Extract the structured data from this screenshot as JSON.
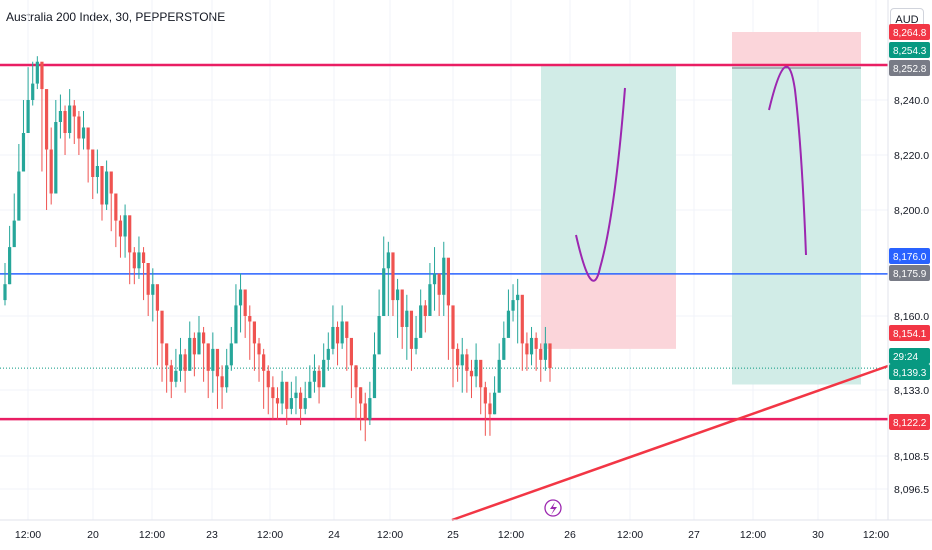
{
  "title": "Australia 200 Index, 30, PEPPERSTONE",
  "currency": "AUD",
  "colors": {
    "up": "#26a69a",
    "down": "#ef5350",
    "level_line": "#e91e63",
    "blue_line": "#2962ff",
    "trendline": "#f23645",
    "arc": "#9c27b0",
    "tp_zone": "#d1ece7",
    "sl_zone": "#fbd5da"
  },
  "chart_data": {
    "type": "candlestick",
    "y_ticks": [
      "8,240.0",
      "8,220.0",
      "8,200.0",
      "8,160.0",
      "8,133.0",
      "8,108.5",
      "8,096.5"
    ],
    "x_ticks": [
      "12:00",
      "20",
      "12:00",
      "23",
      "12:00",
      "24",
      "12:00",
      "25",
      "12:00",
      "26",
      "12:00",
      "27",
      "12:00",
      "30",
      "12:00"
    ],
    "price_labels": [
      {
        "id": "top_hidden",
        "text": "8,264.8",
        "color": "#f23645"
      },
      {
        "id": "upper_a",
        "text": "8,254.3",
        "color": "#089981"
      },
      {
        "id": "upper_b",
        "text": "8,252.8",
        "color": "#787b86"
      },
      {
        "id": "blue_a",
        "text": "8,176.0",
        "color": "#2962ff"
      },
      {
        "id": "blue_b",
        "text": "8,175.9",
        "color": "#787b86"
      },
      {
        "id": "last_red",
        "text": "8,154.1",
        "color": "#f23645"
      },
      {
        "id": "countdown",
        "text": "29:24",
        "color": "#089981"
      },
      {
        "id": "last_green",
        "text": "8,139.3",
        "color": "#089981"
      },
      {
        "id": "support",
        "text": "8,122.2",
        "color": "#f23645"
      }
    ],
    "horizontal_levels": [
      8252.8,
      8175.9,
      8122.2
    ],
    "last_price": 8141.0,
    "series": {
      "name": "",
      "closes": [
        8172,
        8186,
        8196,
        8214,
        8228,
        8240,
        8246,
        8254,
        8244,
        8222,
        8206,
        8232,
        8236,
        8228,
        8238,
        8234,
        8226,
        8230,
        8222,
        8212,
        8216,
        8202,
        8214,
        8206,
        8196,
        8190,
        8198,
        8184,
        8178,
        8184,
        8180,
        8168,
        8172,
        8162,
        8150,
        8142,
        8136,
        8140,
        8146,
        8140,
        8152,
        8146,
        8154,
        8150,
        8140,
        8148,
        8138,
        8134,
        8142,
        8150,
        8164,
        8170,
        8160,
        8158,
        8150,
        8146,
        8140,
        8134,
        8130,
        8128,
        8136,
        8126,
        8130,
        8132,
        8126,
        8130,
        8136,
        8140,
        8134,
        8144,
        8148,
        8156,
        8150,
        8158,
        8152,
        8142,
        8134,
        8128,
        8122,
        8130,
        8146,
        8160,
        8178,
        8184,
        8166,
        8170,
        8156,
        8162,
        8148,
        8152,
        8164,
        8160,
        8172,
        8176,
        8168,
        8182,
        8164,
        8148,
        8142,
        8146,
        8140,
        8138,
        8144,
        8134,
        8128,
        8124,
        8132,
        8144,
        8152,
        8162,
        8166,
        8168,
        8150,
        8146,
        8152,
        8148,
        8144,
        8150,
        8141
      ],
      "highs": [
        8180,
        8194,
        8206,
        8224,
        8240,
        8252,
        8254,
        8256,
        8250,
        8242,
        8230,
        8240,
        8242,
        8238,
        8244,
        8240,
        8236,
        8236,
        8230,
        8220,
        8222,
        8212,
        8218,
        8212,
        8204,
        8198,
        8202,
        8192,
        8186,
        8190,
        8186,
        8176,
        8178,
        8170,
        8158,
        8150,
        8144,
        8148,
        8152,
        8148,
        8158,
        8154,
        8160,
        8156,
        8150,
        8154,
        8146,
        8142,
        8148,
        8156,
        8172,
        8176,
        8166,
        8164,
        8156,
        8152,
        8148,
        8142,
        8138,
        8134,
        8140,
        8134,
        8136,
        8138,
        8134,
        8136,
        8142,
        8146,
        8142,
        8150,
        8154,
        8164,
        8158,
        8164,
        8158,
        8150,
        8142,
        8134,
        8132,
        8136,
        8154,
        8170,
        8190,
        8188,
        8176,
        8174,
        8166,
        8168,
        8156,
        8160,
        8170,
        8166,
        8180,
        8186,
        8176,
        8188,
        8172,
        8156,
        8150,
        8152,
        8148,
        8144,
        8150,
        8142,
        8136,
        8132,
        8138,
        8150,
        8158,
        8170,
        8172,
        8174,
        8158,
        8154,
        8156,
        8154,
        8150,
        8156,
        8148
      ],
      "lows": [
        8164,
        8172,
        8188,
        8206,
        8220,
        8230,
        8238,
        8244,
        8214,
        8200,
        8202,
        8224,
        8226,
        8220,
        8226,
        8224,
        8220,
        8222,
        8210,
        8204,
        8206,
        8196,
        8200,
        8192,
        8186,
        8182,
        8182,
        8172,
        8172,
        8174,
        8166,
        8160,
        8158,
        8142,
        8136,
        8132,
        8130,
        8134,
        8136,
        8132,
        8140,
        8138,
        8146,
        8136,
        8130,
        8132,
        8126,
        8126,
        8132,
        8140,
        8156,
        8154,
        8152,
        8144,
        8140,
        8136,
        8126,
        8124,
        8122,
        8122,
        8124,
        8120,
        8124,
        8124,
        8120,
        8124,
        8130,
        8132,
        8128,
        8136,
        8140,
        8146,
        8142,
        8148,
        8140,
        8130,
        8122,
        8118,
        8114,
        8120,
        8140,
        8156,
        8168,
        8160,
        8160,
        8152,
        8148,
        8144,
        8140,
        8146,
        8154,
        8154,
        8164,
        8162,
        8160,
        8160,
        8144,
        8134,
        8136,
        8132,
        8132,
        8130,
        8134,
        8124,
        8116,
        8116,
        8124,
        8132,
        8144,
        8154,
        8158,
        8150,
        8140,
        8140,
        8142,
        8140,
        8136,
        8140,
        8136
      ]
    }
  }
}
